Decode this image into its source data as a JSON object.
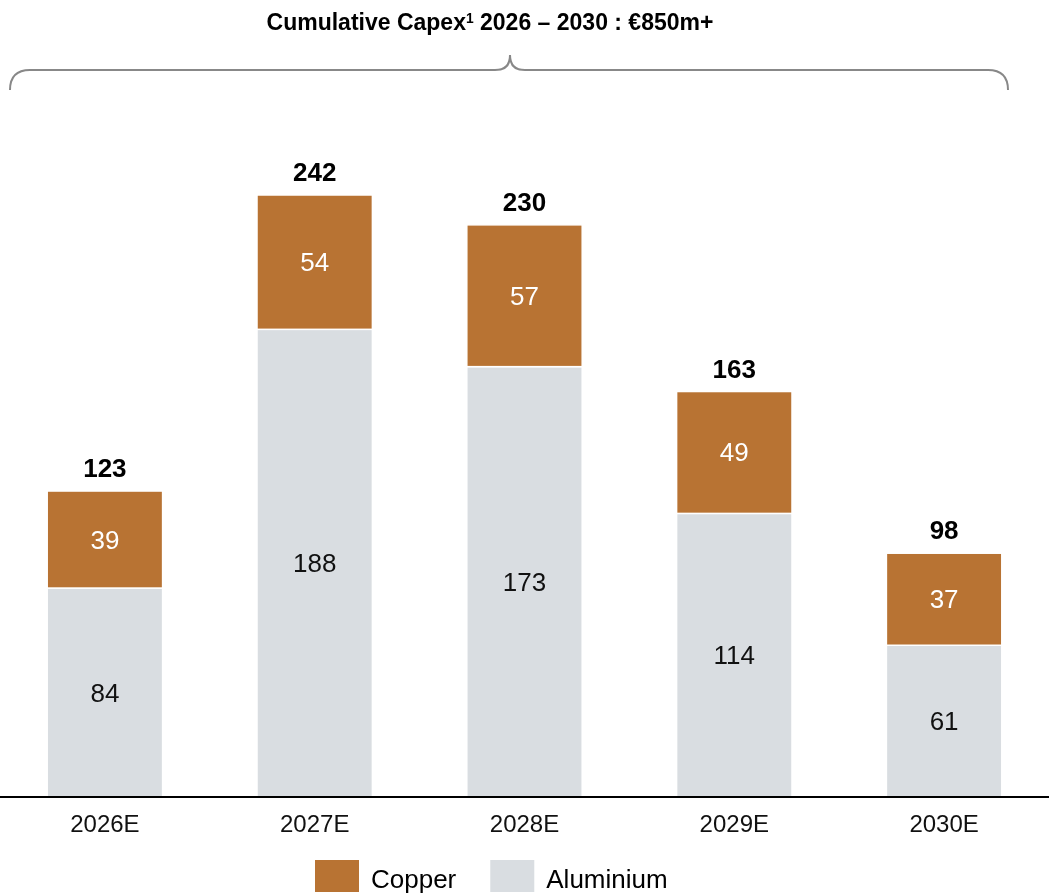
{
  "chart_data": {
    "type": "bar",
    "title": "Cumulative Capex$^{1}$ 2026 – 2030 : €850m+",
    "categories": [
      "2026E",
      "2027E",
      "2028E",
      "2029E",
      "2030E"
    ],
    "stacked": true,
    "data_labels": true,
    "legend": "bottom",
    "series": [
      {
        "name": "Aluminium",
        "color": "#d9dde1",
        "values": [
          84,
          188,
          173,
          114,
          61
        ]
      },
      {
        "name": "Copper",
        "color": "#b87333",
        "values": [
          39,
          54,
          57,
          49,
          37
        ]
      }
    ],
    "totals": [
      "123",
      "242",
      "230",
      "163",
      "98"
    ]
  }
}
